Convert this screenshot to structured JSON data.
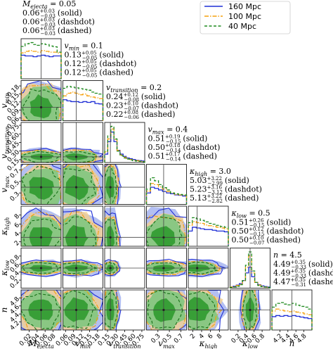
{
  "chart_data": {
    "type": "corner",
    "legend": {
      "placement": "top-right",
      "entries": [
        {
          "label": "160 Mpc",
          "color": "#1f2fd6",
          "dash": "solid"
        },
        {
          "label": "100 Mpc",
          "color": "#f5a00c",
          "dash": "dashdot"
        },
        {
          "label": "40 Mpc",
          "color": "#1e8a1e",
          "dash": "dashed"
        }
      ]
    },
    "colors": {
      "blue": "#1f2fd6",
      "orange": "#f5a00c",
      "green": "#1e8a1e",
      "blue_fill": "#9aa9ee",
      "orange_fill": "#f7d08a",
      "green_fill": "#7fc77f"
    },
    "params": [
      {
        "key": "mejecta",
        "label": "M_ejecta",
        "range": [
          0.0,
          0.1
        ],
        "ticks": [
          0.02,
          0.04,
          0.06,
          0.08
        ],
        "tick_labels": [
          "0.02",
          "0.04",
          "0.06",
          "0.08"
        ],
        "truth": 0.05,
        "title_head": "M_ejecta = 0.05",
        "titles": [
          {
            "med": "0.06",
            "up": "+0.03",
            "lo": "−0.03",
            "tag": "(solid)"
          },
          {
            "med": "0.06",
            "up": "+0.03",
            "lo": "−0.03",
            "tag": "(dashdot)"
          },
          {
            "med": "0.06",
            "up": "+0.03",
            "lo": "−0.03",
            "tag": "(dashed)"
          }
        ]
      },
      {
        "key": "vmin",
        "label": "v_min",
        "range": [
          0.05,
          0.2
        ],
        "ticks": [
          0.06,
          0.09,
          0.12,
          0.15,
          0.18
        ],
        "tick_labels": [
          "0.06",
          "0.09",
          "0.12",
          "0.15",
          "0.18"
        ],
        "truth": 0.1,
        "title_head": "v_min = 0.1",
        "titles": [
          {
            "med": "0.13",
            "up": "+0.05",
            "lo": "−0.05",
            "tag": "(solid)"
          },
          {
            "med": "0.12",
            "up": "+0.05",
            "lo": "−0.05",
            "tag": "(dashdot)"
          },
          {
            "med": "0.12",
            "up": "+0.05",
            "lo": "−0.05",
            "tag": "(dashed)"
          }
        ]
      },
      {
        "key": "vtransition",
        "label": "v_transition",
        "range": [
          0.1,
          0.8
        ],
        "ticks": [
          0.15,
          0.3,
          0.45,
          0.6,
          0.75
        ],
        "tick_labels": [
          "0.15",
          "0.30",
          "0.45",
          "0.60",
          "0.75"
        ],
        "truth": 0.2,
        "title_head": "v_transition = 0.2",
        "titles": [
          {
            "med": "0.24",
            "up": "+0.12",
            "lo": "−0.08",
            "tag": "(solid)"
          },
          {
            "med": "0.23",
            "up": "+0.10",
            "lo": "−0.07",
            "tag": "(dashdot)"
          },
          {
            "med": "0.22",
            "up": "+0.08",
            "lo": "−0.06",
            "tag": "(dashed)"
          }
        ]
      },
      {
        "key": "vmax",
        "label": "v_max",
        "range": [
          0.1,
          0.8
        ],
        "ticks": [
          0.3,
          0.5,
          0.7
        ],
        "tick_labels": [
          "0.3",
          "0.5",
          "0.7"
        ],
        "truth": 0.4,
        "title_head": "v_max = 0.4",
        "titles": [
          {
            "med": "0.51",
            "up": "+0.19",
            "lo": "−0.15",
            "tag": "(solid)"
          },
          {
            "med": "0.50",
            "up": "+0.18",
            "lo": "−0.14",
            "tag": "(dashdot)"
          },
          {
            "med": "0.51",
            "up": "+0.17",
            "lo": "−0.14",
            "tag": "(dashed)"
          }
        ]
      },
      {
        "key": "khigh",
        "label": "κ_high",
        "range": [
          1,
          10
        ],
        "ticks": [
          2,
          4,
          6,
          8
        ],
        "tick_labels": [
          "2",
          "4",
          "6",
          "8"
        ],
        "truth": 3.0,
        "title_head": "κ_high = 3.0",
        "titles": [
          {
            "med": "5.03",
            "up": "+3.22",
            "lo": "−2.99",
            "tag": "(solid)"
          },
          {
            "med": "5.23",
            "up": "+3.16",
            "lo": "−3.12",
            "tag": "(dashdot)"
          },
          {
            "med": "5.13",
            "up": "+3.22",
            "lo": "−2.82",
            "tag": "(dashed)"
          }
        ]
      },
      {
        "key": "klow",
        "label": "κ_low",
        "range": [
          0.0,
          1.0
        ],
        "ticks": [
          0.2,
          0.4,
          0.6,
          0.8
        ],
        "tick_labels": [
          "0.2",
          "0.4",
          "0.6",
          "0.8"
        ],
        "truth": 0.5,
        "title_head": "κ_low = 0.5",
        "titles": [
          {
            "med": "0.51",
            "up": "+0.26",
            "lo": "−0.15",
            "tag": "(solid)"
          },
          {
            "med": "0.50",
            "up": "+0.12",
            "lo": "−0.15",
            "tag": "(dashdot)"
          },
          {
            "med": "0.50",
            "up": "+0.10",
            "lo": "−0.07",
            "tag": "(dashed)"
          }
        ]
      },
      {
        "key": "n",
        "label": "n",
        "range": [
          4.0,
          5.0
        ],
        "ticks": [
          4.2,
          4.4,
          4.6,
          4.8
        ],
        "tick_labels": [
          "4.2",
          "4.4",
          "4.6",
          "4.8"
        ],
        "truth": 4.5,
        "title_head": "n = 4.5",
        "titles": [
          {
            "med": "4.49",
            "up": "+0.35",
            "lo": "−0.33",
            "tag": "(solid)"
          },
          {
            "med": "4.49",
            "up": "+0.35",
            "lo": "−0.33",
            "tag": "(dashdot)"
          },
          {
            "med": "4.47",
            "up": "+0.35",
            "lo": "−0.31",
            "tag": "(dashed)"
          }
        ]
      }
    ],
    "histograms": [
      {
        "solid": [
          0.62,
          0.6,
          0.6,
          0.58,
          0.6,
          0.62,
          0.6,
          0.58,
          0.6,
          0.6
        ],
        "dashdot": [
          0.68,
          0.72,
          0.74,
          0.72,
          0.7,
          0.74,
          0.72,
          0.7,
          0.7,
          0.68
        ],
        "dashed": [
          0.85,
          0.92,
          0.95,
          0.9,
          0.88,
          0.92,
          0.9,
          0.86,
          0.84,
          0.7
        ]
      },
      {
        "solid": [
          0.55,
          0.52,
          0.5,
          0.5,
          0.48,
          0.5,
          0.48,
          0.5,
          0.45,
          0.44
        ],
        "dashdot": [
          0.65,
          0.72,
          0.75,
          0.72,
          0.68,
          0.7,
          0.65,
          0.62,
          0.6,
          0.58
        ],
        "dashed": [
          0.85,
          0.9,
          0.88,
          0.86,
          0.84,
          0.82,
          0.8,
          0.75,
          0.72,
          0.7
        ]
      },
      {
        "solid": [
          0.22,
          0.55,
          0.8,
          0.55,
          0.32,
          0.22,
          0.16,
          0.12,
          0.1,
          0.08,
          0.06,
          0.05,
          0.04
        ],
        "dashdot": [
          0.28,
          0.62,
          0.88,
          0.6,
          0.32,
          0.2,
          0.14,
          0.1,
          0.08,
          0.06,
          0.05,
          0.04,
          0.03
        ],
        "dashed": [
          0.3,
          0.7,
          0.95,
          0.62,
          0.3,
          0.18,
          0.12,
          0.09,
          0.07,
          0.05,
          0.04,
          0.03,
          0.02
        ]
      },
      {
        "solid": [
          0.3,
          0.45,
          0.42,
          0.38,
          0.34,
          0.3,
          0.28,
          0.25,
          0.24,
          0.22
        ],
        "dashdot": [
          0.35,
          0.55,
          0.52,
          0.46,
          0.4,
          0.34,
          0.3,
          0.26,
          0.25,
          0.24
        ],
        "dashed": [
          0.4,
          0.7,
          0.62,
          0.52,
          0.44,
          0.38,
          0.3,
          0.28,
          0.26,
          0.25
        ]
      },
      {
        "solid": [
          0.4,
          0.5,
          0.48,
          0.46,
          0.44,
          0.44,
          0.42,
          0.4,
          0.4,
          0.38
        ],
        "dashdot": [
          0.55,
          0.65,
          0.62,
          0.6,
          0.56,
          0.54,
          0.52,
          0.5,
          0.48,
          0.46
        ],
        "dashed": [
          0.62,
          0.75,
          0.72,
          0.68,
          0.64,
          0.6,
          0.58,
          0.55,
          0.52,
          0.5
        ]
      },
      {
        "solid": [
          0.03,
          0.05,
          0.08,
          0.12,
          0.2,
          0.4,
          0.55,
          0.3,
          0.15,
          0.09,
          0.06,
          0.04,
          0.03
        ],
        "dashdot": [
          0.03,
          0.04,
          0.07,
          0.1,
          0.2,
          0.55,
          0.85,
          0.4,
          0.15,
          0.08,
          0.05,
          0.03,
          0.02
        ],
        "dashed": [
          0.02,
          0.03,
          0.05,
          0.09,
          0.2,
          0.6,
          0.95,
          0.45,
          0.15,
          0.07,
          0.04,
          0.03,
          0.02
        ]
      },
      {
        "solid": [
          0.35,
          0.38,
          0.36,
          0.38,
          0.36,
          0.38,
          0.36,
          0.34,
          0.32,
          0.3
        ],
        "dashdot": [
          0.5,
          0.55,
          0.52,
          0.5,
          0.48,
          0.5,
          0.47,
          0.45,
          0.42,
          0.4
        ],
        "dashed": [
          0.6,
          0.7,
          0.72,
          0.68,
          0.66,
          0.7,
          0.65,
          0.62,
          0.6,
          0.55
        ]
      }
    ]
  }
}
